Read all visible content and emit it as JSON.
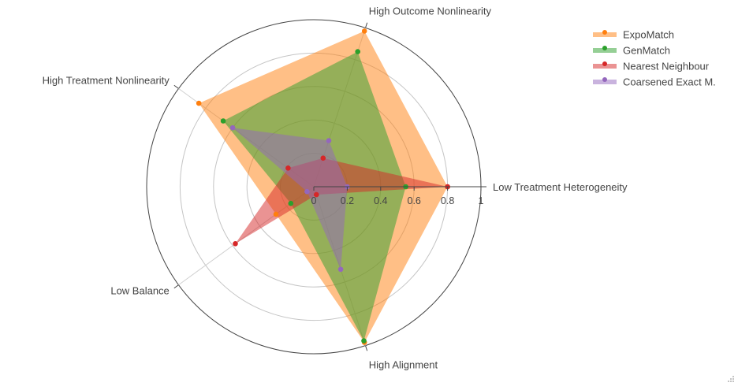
{
  "chart_data": {
    "type": "radar",
    "axes": [
      "Low Treatment Heterogeneity",
      "High Outcome Nonlinearity",
      "High Treatment Nonlinearity",
      "Low Balance",
      "High Alignment"
    ],
    "radial_ticks": [
      "0",
      "0.2",
      "0.4",
      "0.6",
      "0.8",
      "1"
    ],
    "range": [
      0,
      1
    ],
    "series": [
      {
        "name": "ExpoMatch",
        "color": "#ff7f0e",
        "values": [
          0.8,
          0.98,
          0.85,
          0.28,
          0.98
        ]
      },
      {
        "name": "GenMatch",
        "color": "#2ca02c",
        "values": [
          0.55,
          0.85,
          0.67,
          0.17,
          0.97
        ]
      },
      {
        "name": "Nearest Neighbour",
        "color": "#d62728",
        "values": [
          0.8,
          0.18,
          0.19,
          0.58,
          0.05
        ]
      },
      {
        "name": "Coarsened Exact M.",
        "color": "#9467bd",
        "values": [
          0.2,
          0.29,
          0.6,
          0.05,
          0.52
        ]
      }
    ],
    "legend_position": "top-right",
    "grid": true
  }
}
